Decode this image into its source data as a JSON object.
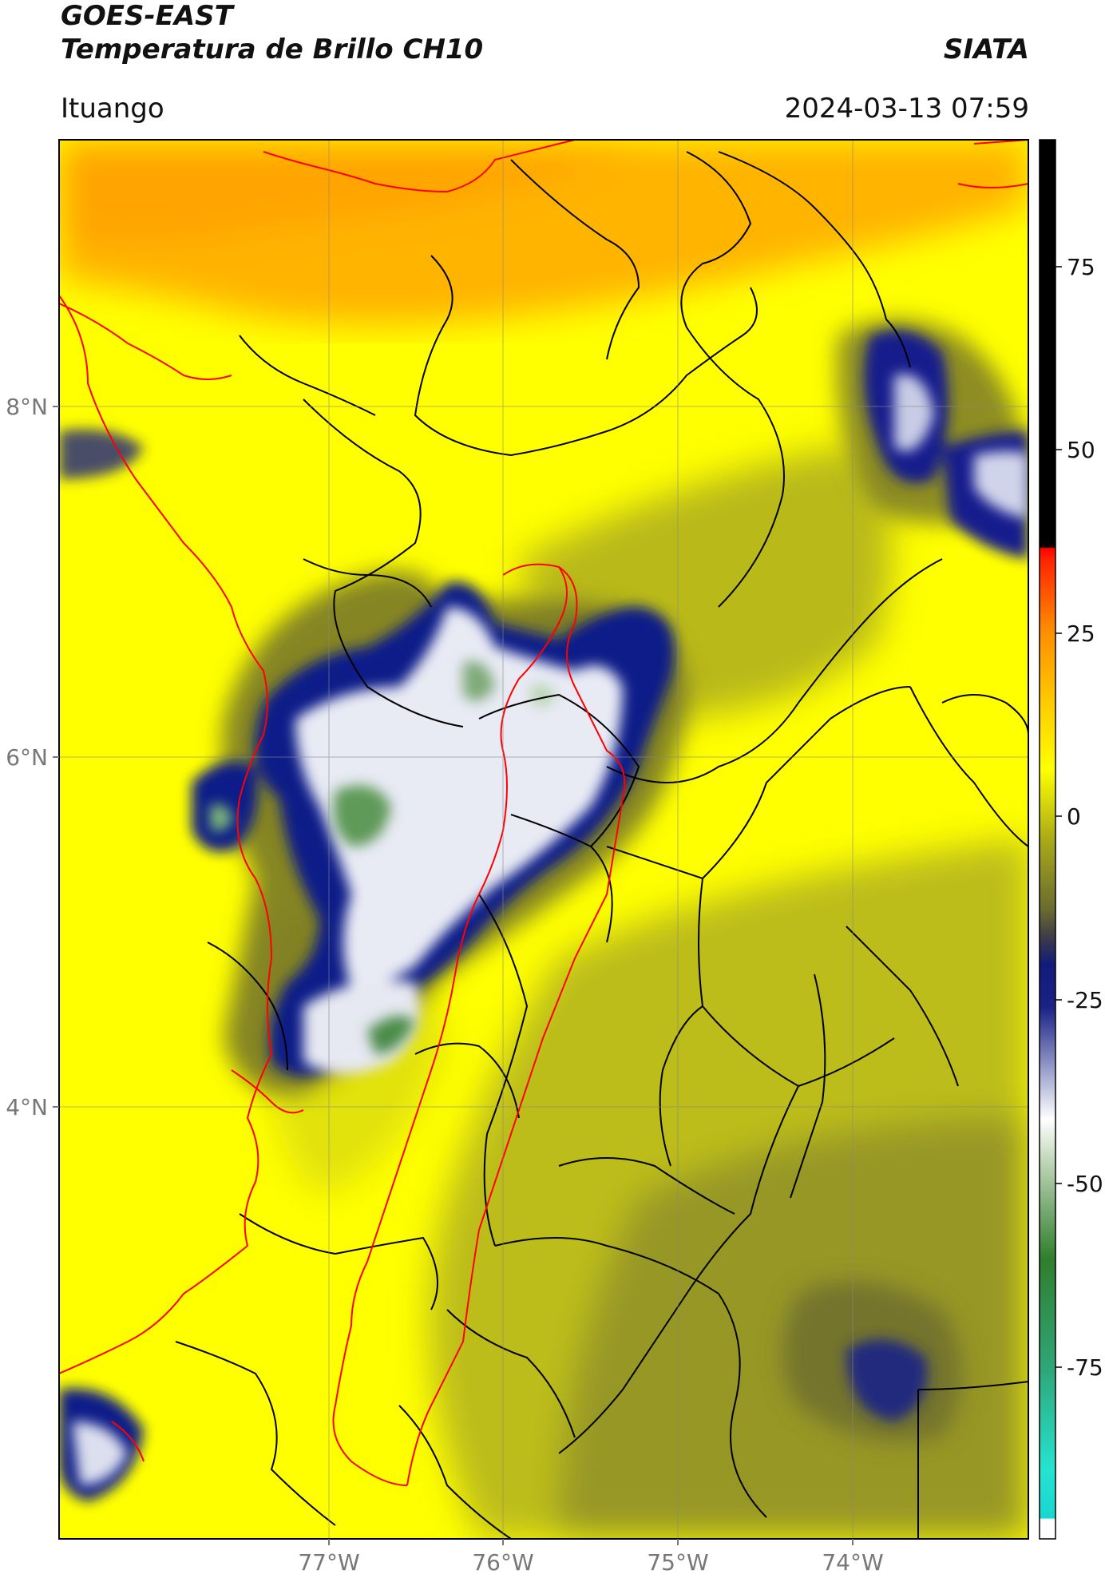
{
  "header": {
    "satellite": "GOES-EAST",
    "product": "Temperatura de Brillo CH10",
    "organization": "SIATA",
    "region": "Ituango",
    "datetime": "2024-03-13 07:59"
  },
  "map": {
    "lat_labels": [
      "8°N",
      "6°N",
      "4°N"
    ],
    "lon_labels": [
      "77°W",
      "76°W",
      "75°W",
      "74°W"
    ],
    "gridlines": true,
    "red_lines": "department borders",
    "black_lines": "municipal borders"
  },
  "colorbar": {
    "ticks": [
      "75",
      "50",
      "25",
      "0",
      "-25",
      "-50",
      "-75"
    ],
    "colors": {
      "warm_black": "#000000",
      "red": "#ff2a00",
      "orange": "#ffaa00",
      "yellow": "#ffff00",
      "olive": "#6e6e22",
      "navy": "#101a8a",
      "white": "#f4f6f2",
      "green": "#3c8a3a",
      "cyan": "#20e4d2"
    }
  }
}
